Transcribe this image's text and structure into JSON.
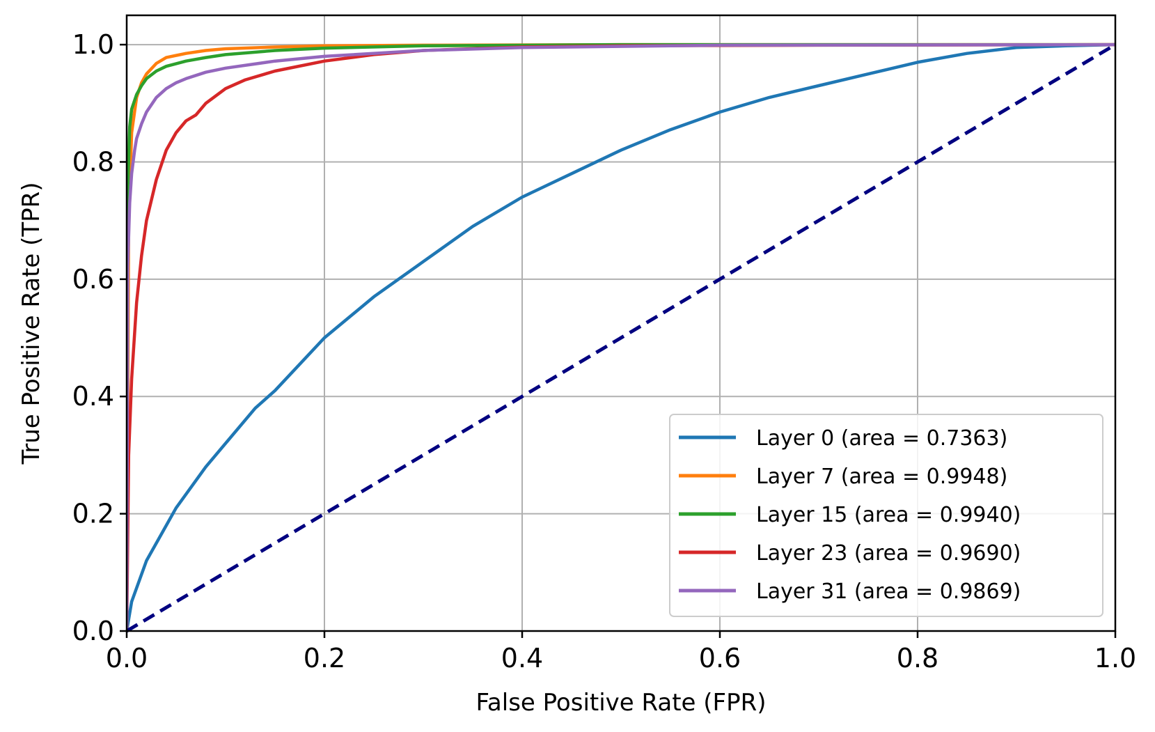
{
  "chart_data": {
    "type": "line",
    "title": "",
    "xlabel": "False Positive Rate (FPR)",
    "ylabel": "True Positive Rate (TPR)",
    "xlim": [
      0.0,
      1.0
    ],
    "ylim": [
      0.0,
      1.05
    ],
    "xticks": [
      "0.0",
      "0.2",
      "0.4",
      "0.6",
      "0.8",
      "1.0"
    ],
    "yticks": [
      "0.0",
      "0.2",
      "0.4",
      "0.6",
      "0.8",
      "1.0"
    ],
    "grid": true,
    "legend_position": "lower-right",
    "series": [
      {
        "name": "Layer 0 (area = 0.7363)",
        "color": "#1f77b4",
        "x": [
          0,
          0.005,
          0.02,
          0.05,
          0.08,
          0.1,
          0.13,
          0.15,
          0.2,
          0.25,
          0.3,
          0.35,
          0.4,
          0.45,
          0.5,
          0.55,
          0.6,
          0.65,
          0.7,
          0.75,
          0.8,
          0.85,
          0.9,
          0.95,
          1.0
        ],
        "y": [
          0,
          0.05,
          0.12,
          0.21,
          0.28,
          0.32,
          0.38,
          0.41,
          0.5,
          0.57,
          0.63,
          0.69,
          0.74,
          0.78,
          0.82,
          0.855,
          0.885,
          0.91,
          0.93,
          0.95,
          0.97,
          0.985,
          0.995,
          0.998,
          1.0
        ]
      },
      {
        "name": "Layer 7 (area = 0.9948)",
        "color": "#ff7f0e",
        "x": [
          0,
          0.002,
          0.005,
          0.01,
          0.015,
          0.02,
          0.03,
          0.04,
          0.06,
          0.08,
          0.1,
          0.15,
          0.2,
          0.3,
          0.5,
          0.7,
          1.0
        ],
        "y": [
          0,
          0.7,
          0.85,
          0.91,
          0.935,
          0.95,
          0.968,
          0.978,
          0.985,
          0.99,
          0.993,
          0.996,
          0.998,
          0.999,
          1.0,
          1.0,
          1.0
        ]
      },
      {
        "name": "Layer 15 (area = 0.9940)",
        "color": "#2ca02c",
        "x": [
          0,
          0.001,
          0.003,
          0.005,
          0.01,
          0.015,
          0.02,
          0.03,
          0.04,
          0.06,
          0.08,
          0.1,
          0.15,
          0.2,
          0.3,
          0.5,
          0.7,
          1.0
        ],
        "y": [
          0,
          0.75,
          0.86,
          0.89,
          0.915,
          0.93,
          0.942,
          0.955,
          0.963,
          0.972,
          0.978,
          0.983,
          0.99,
          0.994,
          0.998,
          1.0,
          1.0,
          1.0
        ]
      },
      {
        "name": "Layer 23 (area = 0.9690)",
        "color": "#d62728",
        "x": [
          0,
          0.002,
          0.005,
          0.01,
          0.015,
          0.02,
          0.03,
          0.04,
          0.05,
          0.06,
          0.07,
          0.08,
          0.1,
          0.12,
          0.15,
          0.2,
          0.25,
          0.3,
          0.4,
          0.5,
          0.7,
          1.0
        ],
        "y": [
          0,
          0.3,
          0.43,
          0.56,
          0.64,
          0.7,
          0.77,
          0.82,
          0.85,
          0.87,
          0.88,
          0.9,
          0.925,
          0.94,
          0.955,
          0.972,
          0.983,
          0.99,
          0.996,
          0.998,
          0.999,
          1.0
        ]
      },
      {
        "name": "Layer 31 (area = 0.9869)",
        "color": "#9467bd",
        "x": [
          0,
          0.001,
          0.003,
          0.005,
          0.008,
          0.01,
          0.015,
          0.02,
          0.03,
          0.04,
          0.05,
          0.06,
          0.08,
          0.1,
          0.15,
          0.2,
          0.3,
          0.4,
          0.6,
          1.0
        ],
        "y": [
          0,
          0.62,
          0.73,
          0.78,
          0.82,
          0.84,
          0.865,
          0.885,
          0.91,
          0.925,
          0.935,
          0.942,
          0.953,
          0.96,
          0.972,
          0.98,
          0.99,
          0.995,
          0.999,
          1.0
        ]
      }
    ],
    "reference_line": {
      "style": "dashed",
      "color": "#000080",
      "x": [
        0,
        1
      ],
      "y": [
        0,
        1
      ]
    }
  }
}
